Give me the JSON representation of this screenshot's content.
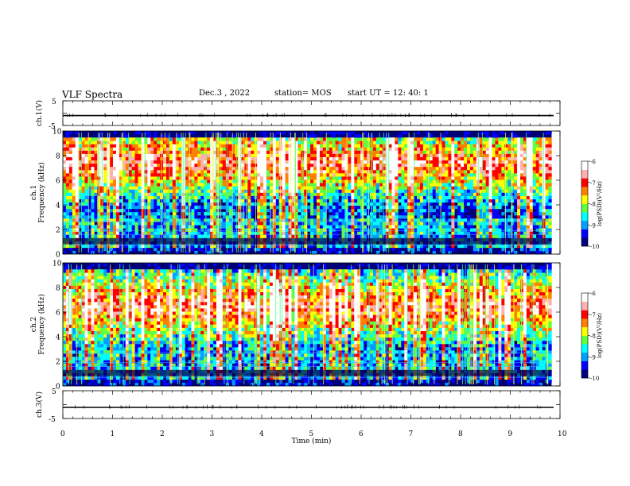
{
  "header": {
    "title": "VLF Spectra",
    "date": "Dec.3 , 2022",
    "station": "station= MOS",
    "start_ut": "start UT = 12: 40: 1"
  },
  "chart_data": [
    {
      "type": "line",
      "panel": "ch1-waveform",
      "ylabel": "ch.1(V)",
      "ylim": [
        -5,
        5
      ],
      "yticks": [
        "5",
        "-5"
      ],
      "x": [
        0,
        10
      ],
      "values": [
        -1,
        -1
      ]
    },
    {
      "type": "heatmap",
      "panel": "ch1-spectrogram",
      "ylabel": "ch.1\nFrequency (kHz)",
      "ylim": [
        0,
        10
      ],
      "yticks": [
        "0",
        "2",
        "4",
        "6",
        "8",
        "10"
      ],
      "xlim": [
        0,
        9.83
      ],
      "colorbar": {
        "label": "log(PSD)(V²/Hz)",
        "range": [
          -10,
          -6
        ],
        "ticks": [
          "-6",
          "-7",
          "-8",
          "-9",
          "-10"
        ]
      },
      "strongest_band_khz": [
        6,
        9
      ]
    },
    {
      "type": "heatmap",
      "panel": "ch2-spectrogram",
      "ylabel": "ch.2\nFrequency (kHz)",
      "ylim": [
        0,
        10
      ],
      "yticks": [
        "0",
        "2",
        "4",
        "6",
        "8",
        "10"
      ],
      "xlim": [
        0,
        9.83
      ],
      "colorbar": {
        "label": "log(PSD)(V²/Hz)",
        "range": [
          -10,
          -6
        ],
        "ticks": [
          "-6",
          "-7",
          "-8",
          "-9",
          "-10"
        ]
      },
      "strongest_band_khz": [
        5,
        8
      ]
    },
    {
      "type": "line",
      "panel": "ch3-waveform",
      "ylabel": "ch.3(V)",
      "ylim": [
        -5,
        5
      ],
      "yticks": [
        "5",
        "-5"
      ],
      "x": [
        0,
        10
      ],
      "values": [
        -1,
        -1
      ]
    }
  ],
  "xaxis": {
    "label": "Time (min)",
    "ticks": [
      "0",
      "1",
      "2",
      "3",
      "4",
      "5",
      "6",
      "7",
      "8",
      "9",
      "10"
    ],
    "range": [
      0,
      10
    ]
  },
  "colors": {
    "colormap": [
      "#000080",
      "#0000ff",
      "#00a0ff",
      "#00ffff",
      "#60ff40",
      "#ffff00",
      "#ff8000",
      "#ff0000",
      "#ffb0b0",
      "#ffffff"
    ]
  }
}
